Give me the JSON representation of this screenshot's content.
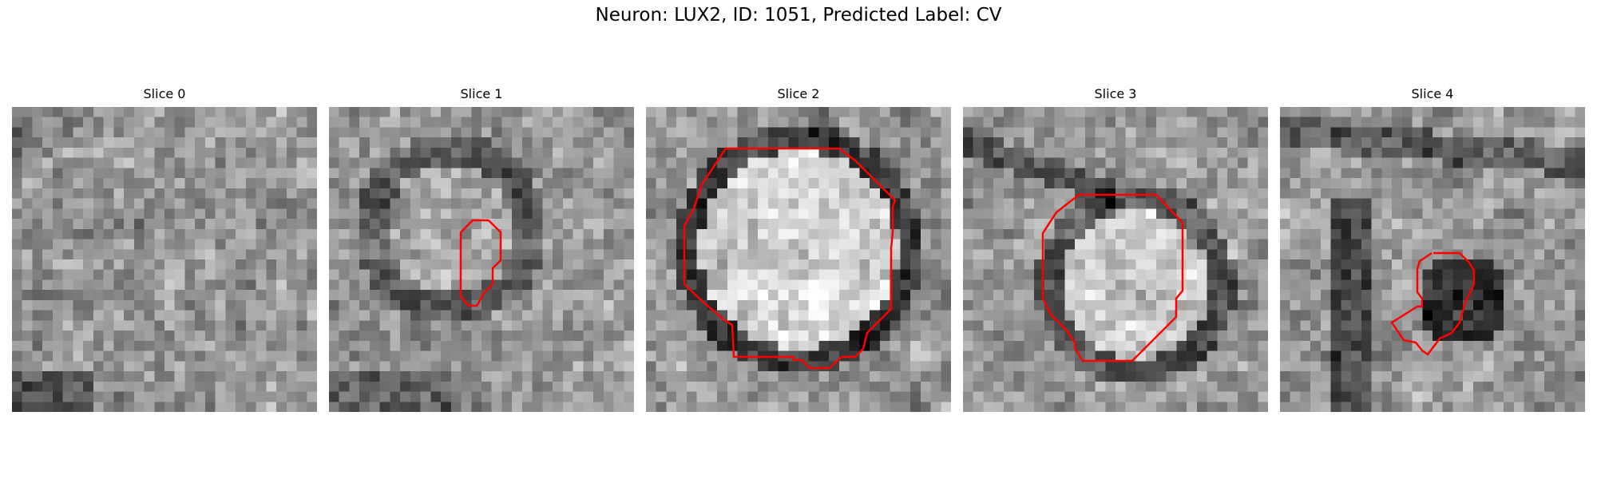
{
  "figure": {
    "title": "Neuron: LUX2, ID: 1051, Predicted Label: CV"
  },
  "colors": {
    "contour": "#ff0000",
    "background": "#ffffff",
    "colormap": "gray"
  },
  "panels": [
    {
      "title": "Slice 0",
      "has_contour": false
    },
    {
      "title": "Slice 1",
      "has_contour": true
    },
    {
      "title": "Slice 2",
      "has_contour": true
    },
    {
      "title": "Slice 3",
      "has_contour": true
    },
    {
      "title": "Slice 4",
      "has_contour": true
    }
  ]
}
